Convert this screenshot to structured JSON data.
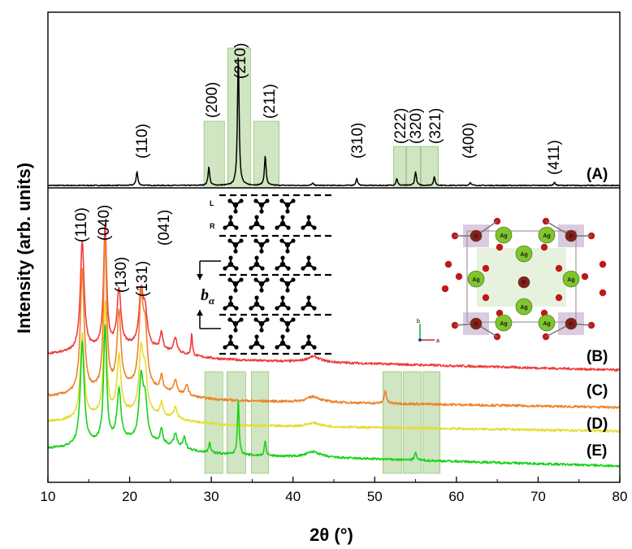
{
  "chart_data": {
    "type": "line",
    "xlabel": "2θ (°)",
    "ylabel": "Intensity (arb. units)",
    "xlim": [
      10,
      80
    ],
    "xticks": [
      10,
      20,
      30,
      40,
      50,
      60,
      70,
      80
    ],
    "yticks_shown": false,
    "series": [
      {
        "name": "(A)",
        "color": "#000000",
        "baseline": 0.0,
        "noise": 0.003,
        "peaks": [
          {
            "x": 20.9,
            "h": 0.09,
            "w": 0.12
          },
          {
            "x": 29.7,
            "h": 0.12,
            "w": 0.12
          },
          {
            "x": 33.3,
            "h": 0.85,
            "w": 0.12
          },
          {
            "x": 36.6,
            "h": 0.19,
            "w": 0.12
          },
          {
            "x": 42.4,
            "h": 0.015,
            "w": 0.12
          },
          {
            "x": 47.8,
            "h": 0.045,
            "w": 0.12
          },
          {
            "x": 52.7,
            "h": 0.045,
            "w": 0.12
          },
          {
            "x": 55.0,
            "h": 0.09,
            "w": 0.12
          },
          {
            "x": 57.3,
            "h": 0.055,
            "w": 0.12
          },
          {
            "x": 61.7,
            "h": 0.02,
            "w": 0.12
          },
          {
            "x": 72.0,
            "h": 0.02,
            "w": 0.12
          }
        ]
      },
      {
        "name": "(B)",
        "color": "#f03c3c",
        "baseline": 0.0,
        "noise": 0.006,
        "peaks": [
          {
            "x": 14.2,
            "h": 0.58,
            "w": 0.28
          },
          {
            "x": 17.0,
            "h": 0.65,
            "w": 0.22
          },
          {
            "x": 18.7,
            "h": 0.3,
            "w": 0.28
          },
          {
            "x": 21.4,
            "h": 0.28,
            "w": 0.3
          },
          {
            "x": 21.9,
            "h": 0.17,
            "w": 0.3
          },
          {
            "x": 23.9,
            "h": 0.09,
            "w": 0.2
          },
          {
            "x": 25.6,
            "h": 0.08,
            "w": 0.25
          },
          {
            "x": 27.6,
            "h": 0.12,
            "w": 0.1
          },
          {
            "x": 42.5,
            "h": 0.03,
            "w": 1.0
          }
        ]
      },
      {
        "name": "(C)",
        "color": "#f08228",
        "baseline": 0.0,
        "noise": 0.006,
        "peaks": [
          {
            "x": 14.2,
            "h": 0.65,
            "w": 0.28
          },
          {
            "x": 17.0,
            "h": 0.8,
            "w": 0.22
          },
          {
            "x": 18.7,
            "h": 0.4,
            "w": 0.28
          },
          {
            "x": 21.4,
            "h": 0.45,
            "w": 0.3
          },
          {
            "x": 21.9,
            "h": 0.28,
            "w": 0.3
          },
          {
            "x": 23.9,
            "h": 0.08,
            "w": 0.2
          },
          {
            "x": 25.6,
            "h": 0.07,
            "w": 0.25
          },
          {
            "x": 27.0,
            "h": 0.06,
            "w": 0.2
          },
          {
            "x": 42.5,
            "h": 0.03,
            "w": 1.0
          },
          {
            "x": 51.3,
            "h": 0.07,
            "w": 0.15
          }
        ]
      },
      {
        "name": "(D)",
        "color": "#e6dc32",
        "baseline": 0.0,
        "noise": 0.006,
        "peaks": [
          {
            "x": 14.2,
            "h": 0.45,
            "w": 0.28
          },
          {
            "x": 17.0,
            "h": 0.6,
            "w": 0.22
          },
          {
            "x": 18.7,
            "h": 0.3,
            "w": 0.28
          },
          {
            "x": 21.4,
            "h": 0.32,
            "w": 0.3
          },
          {
            "x": 21.9,
            "h": 0.2,
            "w": 0.3
          },
          {
            "x": 23.9,
            "h": 0.07,
            "w": 0.2
          },
          {
            "x": 25.6,
            "h": 0.06,
            "w": 0.25
          },
          {
            "x": 42.5,
            "h": 0.02,
            "w": 1.0
          }
        ]
      },
      {
        "name": "(E)",
        "color": "#19d219",
        "baseline": 0.0,
        "noise": 0.006,
        "peaks": [
          {
            "x": 14.2,
            "h": 0.55,
            "w": 0.28
          },
          {
            "x": 17.0,
            "h": 0.62,
            "w": 0.22
          },
          {
            "x": 18.7,
            "h": 0.27,
            "w": 0.28
          },
          {
            "x": 21.4,
            "h": 0.32,
            "w": 0.3
          },
          {
            "x": 21.9,
            "h": 0.2,
            "w": 0.3
          },
          {
            "x": 23.9,
            "h": 0.08,
            "w": 0.2
          },
          {
            "x": 25.6,
            "h": 0.07,
            "w": 0.25
          },
          {
            "x": 26.7,
            "h": 0.06,
            "w": 0.2
          },
          {
            "x": 29.8,
            "h": 0.06,
            "w": 0.12
          },
          {
            "x": 33.3,
            "h": 0.3,
            "w": 0.12
          },
          {
            "x": 36.6,
            "h": 0.08,
            "w": 0.12
          },
          {
            "x": 42.5,
            "h": 0.03,
            "w": 1.0
          },
          {
            "x": 55.0,
            "h": 0.04,
            "w": 0.15
          }
        ]
      }
    ],
    "peak_labels": [
      "(110)",
      "(200)",
      "(210)",
      "(211)",
      "(310)",
      "(222)",
      "(320)",
      "(321)",
      "(400)",
      "(411)",
      "(110)",
      "(040)",
      "(130)",
      "(131)",
      "(041)"
    ],
    "highlight_bands_top": [
      [
        29.1,
        31.6
      ],
      [
        32.0,
        34.8
      ],
      [
        35.2,
        38.3
      ],
      [
        52.3,
        53.8
      ],
      [
        53.9,
        55.6
      ],
      [
        55.7,
        57.8
      ]
    ],
    "highlight_bands_bottom": [
      [
        29.2,
        31.4
      ],
      [
        31.9,
        34.2
      ],
      [
        34.9,
        37.0
      ],
      [
        51.0,
        53.3
      ],
      [
        53.5,
        55.7
      ],
      [
        55.9,
        58.0
      ]
    ],
    "band_color": "#a9d08e"
  },
  "inset_chain": {
    "label_L": "L",
    "label_R": "R",
    "label_b": "b",
    "label_alpha": "α"
  },
  "inset_crystal": {
    "atom_P": "P",
    "atom_Ag": "Ag",
    "axis_b": "b",
    "axis_a": "a"
  }
}
